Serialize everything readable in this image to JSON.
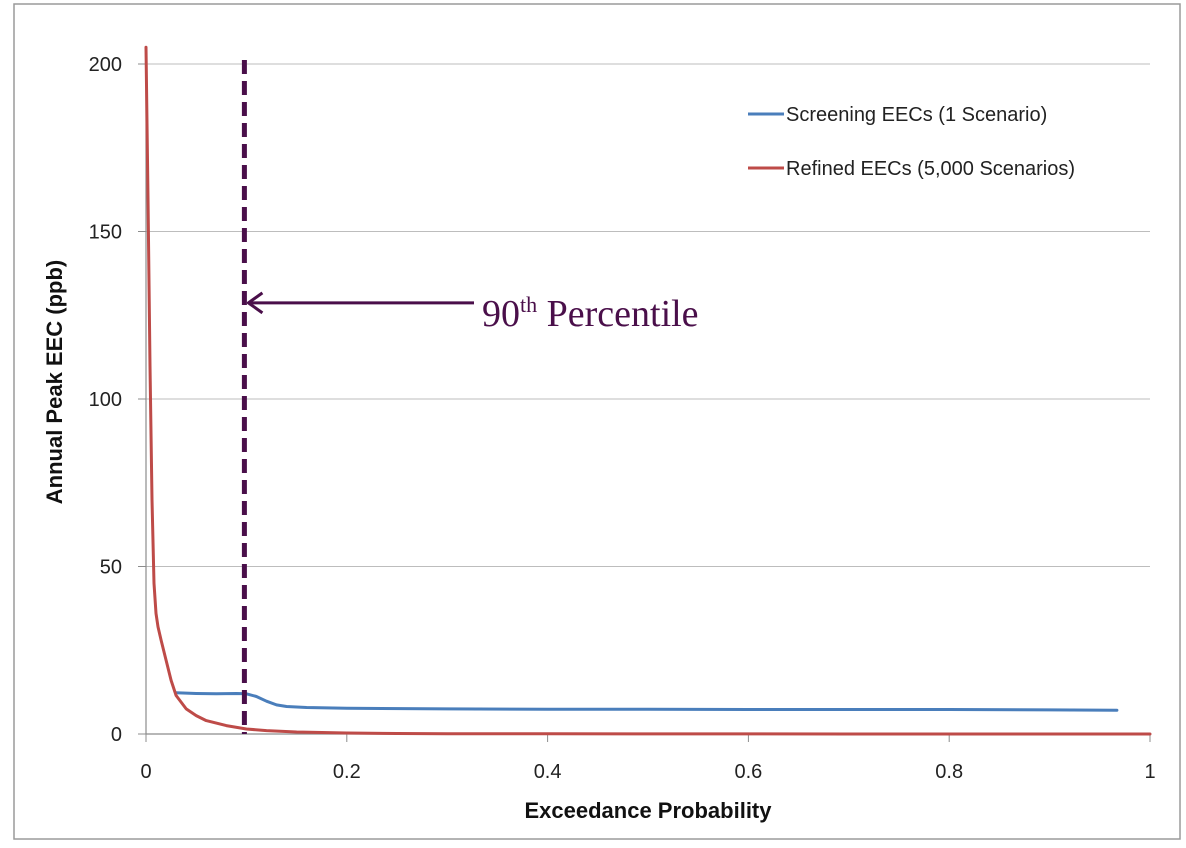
{
  "chart_data": {
    "type": "line",
    "title": "",
    "xlabel": "Exceedance Probability",
    "ylabel": "Annual Peak EEC (ppb)",
    "xlim": [
      0,
      1
    ],
    "ylim": [
      0,
      200
    ],
    "x_ticks": [
      0,
      0.2,
      0.4,
      0.6,
      0.8,
      1
    ],
    "x_tick_labels": [
      "0",
      "0.2",
      "0.4",
      "0.6",
      "0.8",
      "1"
    ],
    "y_ticks": [
      0,
      50,
      100,
      150,
      200
    ],
    "y_tick_labels": [
      "0",
      "50",
      "100",
      "150",
      "200"
    ],
    "grid": "horizontal",
    "legend_position": "top-right",
    "series": [
      {
        "name": "Screening EECs (1 Scenario)",
        "color": "#4a7ebb",
        "x": [
          0.03,
          0.05,
          0.07,
          0.09,
          0.1,
          0.11,
          0.12,
          0.13,
          0.14,
          0.16,
          0.2,
          0.3,
          0.4,
          0.5,
          0.6,
          0.7,
          0.8,
          0.9,
          0.967
        ],
        "y": [
          12.3,
          12.1,
          12.0,
          12.1,
          12.0,
          11.2,
          9.8,
          8.7,
          8.2,
          7.9,
          7.7,
          7.5,
          7.4,
          7.4,
          7.3,
          7.3,
          7.3,
          7.2,
          7.1
        ]
      },
      {
        "name": "Refined EECs (5,000 Scenarios)",
        "color": "#be4b48",
        "x": [
          0.0,
          0.002,
          0.004,
          0.006,
          0.008,
          0.01,
          0.012,
          0.015,
          0.02,
          0.025,
          0.03,
          0.04,
          0.05,
          0.06,
          0.08,
          0.1,
          0.12,
          0.15,
          0.2,
          0.25,
          0.3,
          0.4,
          0.5,
          0.6,
          0.7,
          0.8,
          0.9,
          1.0
        ],
        "y": [
          205,
          160,
          110,
          70,
          45,
          36,
          32,
          28,
          22,
          16,
          11.5,
          7.5,
          5.5,
          4.0,
          2.5,
          1.5,
          1.0,
          0.6,
          0.3,
          0.15,
          0.1,
          0.05,
          0.03,
          0.02,
          0.01,
          0.01,
          0.0,
          0.0
        ]
      }
    ],
    "annotations": {
      "percentile_line_x": 0.1,
      "percentile_line_color": "#4a0f4a",
      "arrow_y": 129,
      "label_main": "90",
      "label_sup": "th",
      "label_rest": " Percentile"
    }
  }
}
